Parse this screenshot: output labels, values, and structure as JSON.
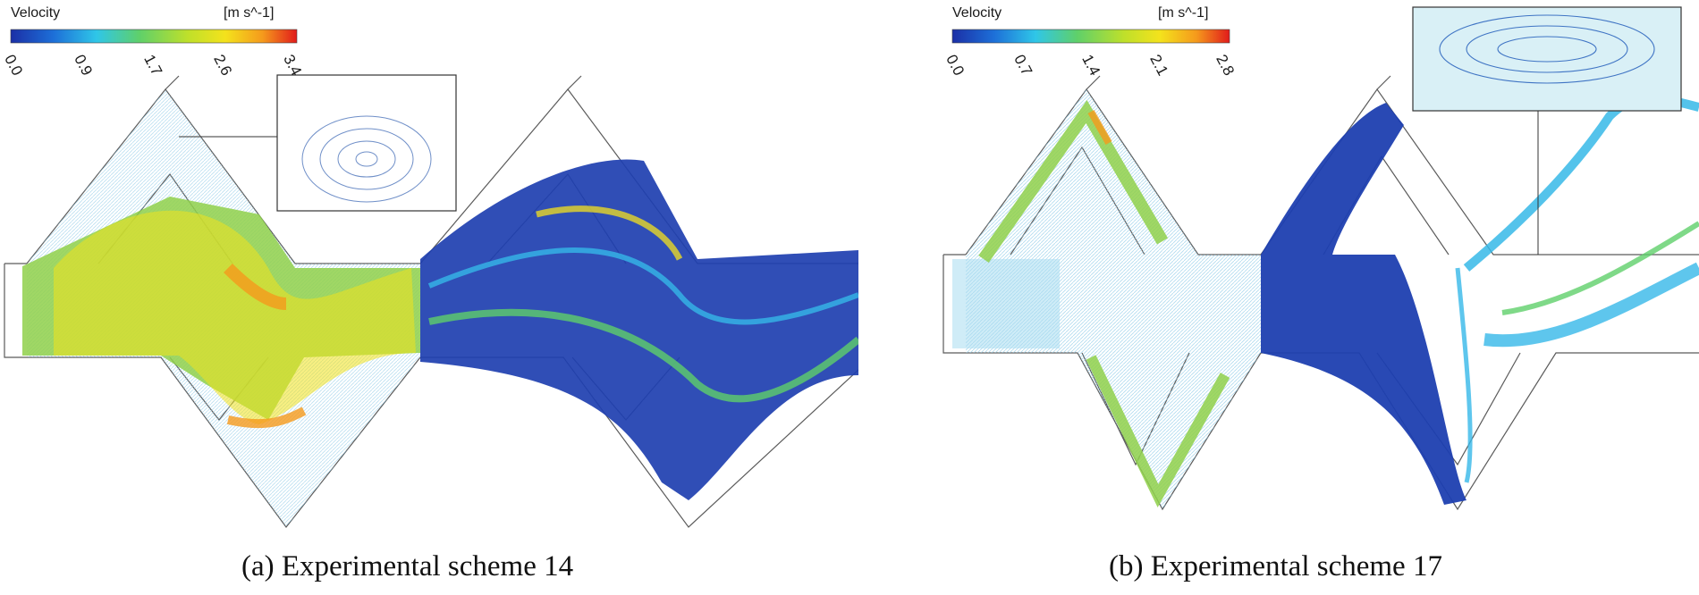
{
  "colors": {
    "colormap": [
      "#1b2fa6",
      "#1d6fd8",
      "#2fc6e8",
      "#5fd06a",
      "#bfe02a",
      "#f4e21c",
      "#f59a1c",
      "#e11b1b"
    ],
    "outline": "#5b5b5b",
    "background": "#ffffff"
  },
  "panels": [
    {
      "id": "a",
      "colorbar": {
        "title": "Velocity",
        "unit": "[m s^-1]",
        "ticks": [
          "0.0",
          "0.9",
          "1.7",
          "2.6",
          "3.4"
        ]
      },
      "caption": "(a) Experimental scheme 14"
    },
    {
      "id": "b",
      "colorbar": {
        "title": "Velocity",
        "unit": "[m s^-1]",
        "ticks": [
          "0.0",
          "0.7",
          "1.4",
          "2.1",
          "2.8"
        ]
      },
      "caption": "(b) Experimental scheme 17"
    }
  ]
}
